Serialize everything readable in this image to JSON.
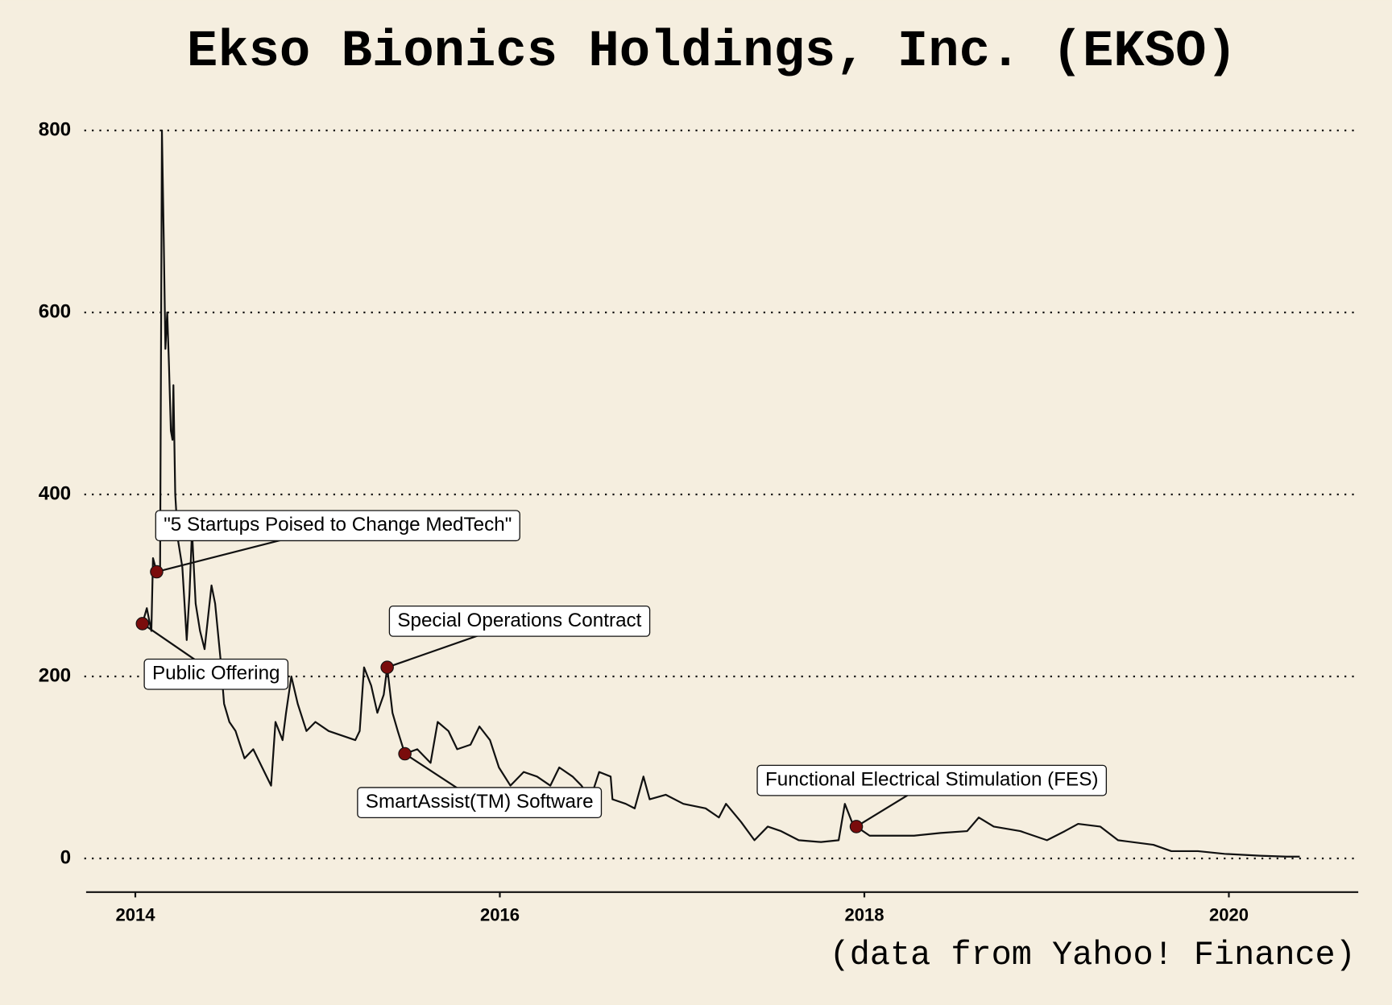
{
  "chart_data": {
    "type": "line",
    "title": "Ekso Bionics Holdings, Inc. (EKSO)",
    "source": "(data from Yahoo! Finance)",
    "color": "#111111",
    "marker_color": "#7a0c0c",
    "grid": true,
    "xlim": [
      2013.73,
      2020.71
    ],
    "xticks": [
      2014,
      2016,
      2018,
      2020
    ],
    "ylim": [
      -37,
      830
    ],
    "yticks": [
      0,
      200,
      400,
      600,
      800
    ],
    "x": [
      2014.039,
      2014.063,
      2014.088,
      2014.097,
      2014.117,
      2014.136,
      2014.146,
      2014.156,
      2014.165,
      2014.175,
      2014.185,
      2014.195,
      2014.204,
      2014.209,
      2014.219,
      2014.234,
      2014.258,
      2014.282,
      2014.297,
      2014.311,
      2014.331,
      2014.355,
      2014.38,
      2014.418,
      2014.438,
      2014.467,
      2014.487,
      2014.516,
      2014.55,
      2014.599,
      2014.647,
      2014.696,
      2014.745,
      2014.769,
      2014.808,
      2014.827,
      2014.856,
      2014.891,
      2014.939,
      2014.988,
      2015.061,
      2015.134,
      2015.207,
      2015.231,
      2015.255,
      2015.294,
      2015.328,
      2015.363,
      2015.382,
      2015.411,
      2015.44,
      2015.479,
      2015.547,
      2015.62,
      2015.659,
      2015.718,
      2015.766,
      2015.839,
      2015.888,
      2015.946,
      2015.995,
      2016.058,
      2016.131,
      2016.204,
      2016.277,
      2016.326,
      2016.399,
      2016.448,
      2016.496,
      2016.545,
      2016.608,
      2016.618,
      2016.691,
      2016.74,
      2016.788,
      2016.822,
      2016.91,
      2017.007,
      2017.129,
      2017.202,
      2017.241,
      2017.324,
      2017.397,
      2017.47,
      2017.543,
      2017.64,
      2017.762,
      2017.859,
      2017.893,
      2017.932,
      2017.956,
      2018.029,
      2018.127,
      2018.273,
      2018.418,
      2018.564,
      2018.628,
      2018.71,
      2018.856,
      2019.002,
      2019.1,
      2019.173,
      2019.294,
      2019.392,
      2019.586,
      2019.684,
      2019.83,
      2019.976,
      2020.17,
      2020.316,
      2020.389
    ],
    "values": [
      258,
      275,
      250,
      330,
      315,
      320,
      800,
      680,
      560,
      600,
      540,
      470,
      460,
      520,
      400,
      350,
      320,
      240,
      290,
      360,
      280,
      250,
      230,
      300,
      280,
      220,
      170,
      150,
      140,
      110,
      120,
      100,
      80,
      150,
      130,
      160,
      200,
      170,
      140,
      150,
      140,
      135,
      130,
      140,
      210,
      190,
      160,
      180,
      210,
      160,
      140,
      115,
      120,
      105,
      150,
      140,
      120,
      125,
      145,
      130,
      100,
      80,
      95,
      90,
      80,
      100,
      90,
      80,
      65,
      95,
      90,
      65,
      60,
      55,
      90,
      65,
      70,
      60,
      55,
      45,
      60,
      40,
      20,
      35,
      30,
      20,
      18,
      20,
      60,
      40,
      35,
      25,
      25,
      25,
      28,
      30,
      45,
      35,
      30,
      20,
      30,
      38,
      35,
      20,
      15,
      8,
      8,
      5,
      3,
      2,
      2
    ],
    "annotations": [
      {
        "label": "Public Offering",
        "x": 2014.039,
        "y": 258
      },
      {
        "label": "\"5 Startups Poised to Change MedTech\"",
        "x": 2014.117,
        "y": 315
      },
      {
        "label": "Special Operations Contract",
        "x": 2015.382,
        "y": 210
      },
      {
        "label": "SmartAssist(TM) Software",
        "x": 2015.479,
        "y": 115
      },
      {
        "label": "Functional Electrical Stimulation (FES)",
        "x": 2017.956,
        "y": 35
      }
    ]
  }
}
